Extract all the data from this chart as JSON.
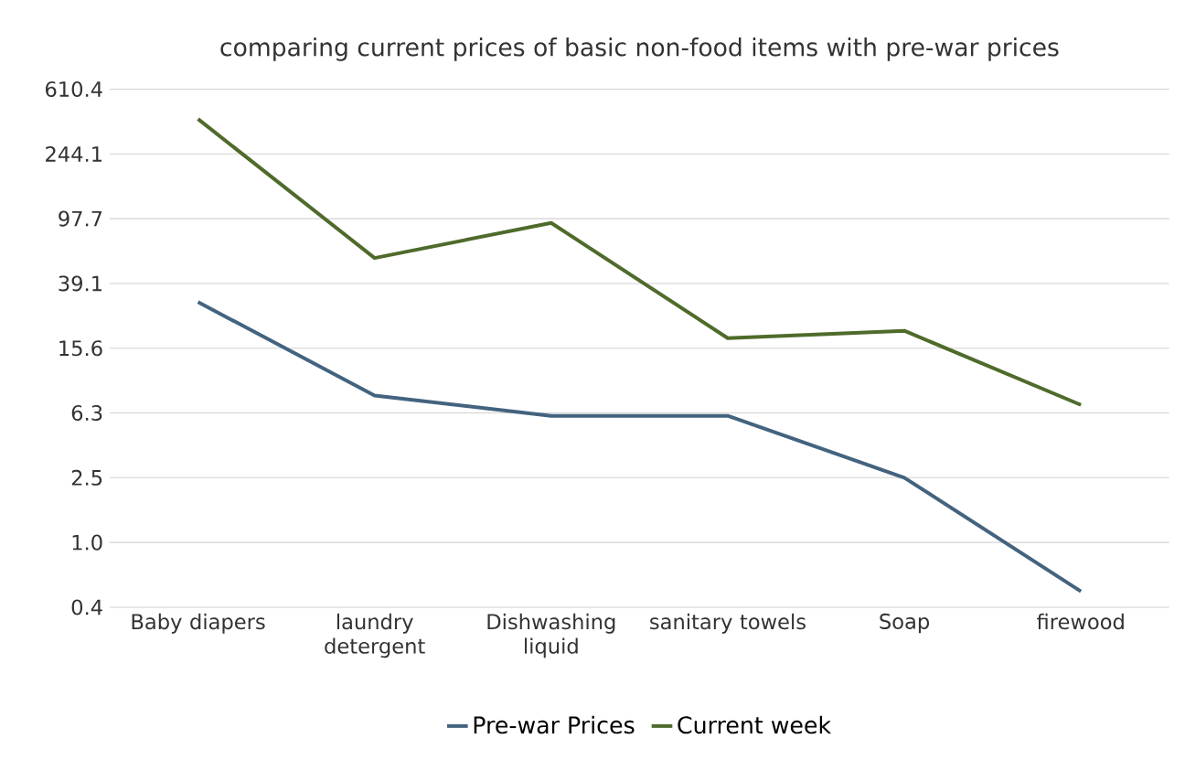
{
  "chart_data": {
    "type": "line",
    "title": "comparing current prices of basic non-food items with pre-war prices",
    "categories": [
      "Baby diapers",
      "laundry detergent",
      "Dishwashing liquid",
      "sanitary towels",
      "Soap",
      "firewood"
    ],
    "series": [
      {
        "name": "Pre-war Prices",
        "color": "#43637f",
        "values": [
          30,
          8,
          6,
          6,
          2.5,
          0.5
        ]
      },
      {
        "name": "Current week",
        "color": "#4f6b2b",
        "values": [
          400,
          56,
          92,
          18,
          20,
          7
        ]
      }
    ],
    "log": true,
    "ylim": [
      0.4,
      610.3515625
    ],
    "yticks": [
      {
        "value": 0.4,
        "label": "0.4"
      },
      {
        "value": 1,
        "label": "1.0"
      },
      {
        "value": 2.5,
        "label": "2.5"
      },
      {
        "value": 6.25,
        "label": "6.3"
      },
      {
        "value": 15.625,
        "label": "15.6"
      },
      {
        "value": 39.0625,
        "label": "39.1"
      },
      {
        "value": 97.65625,
        "label": "97.7"
      },
      {
        "value": 244.140625,
        "label": "244.1"
      },
      {
        "value": 610.3515625,
        "label": "610.4"
      }
    ],
    "grid": "y",
    "legend": "bottom",
    "marker": "none",
    "line_style": "solid"
  }
}
